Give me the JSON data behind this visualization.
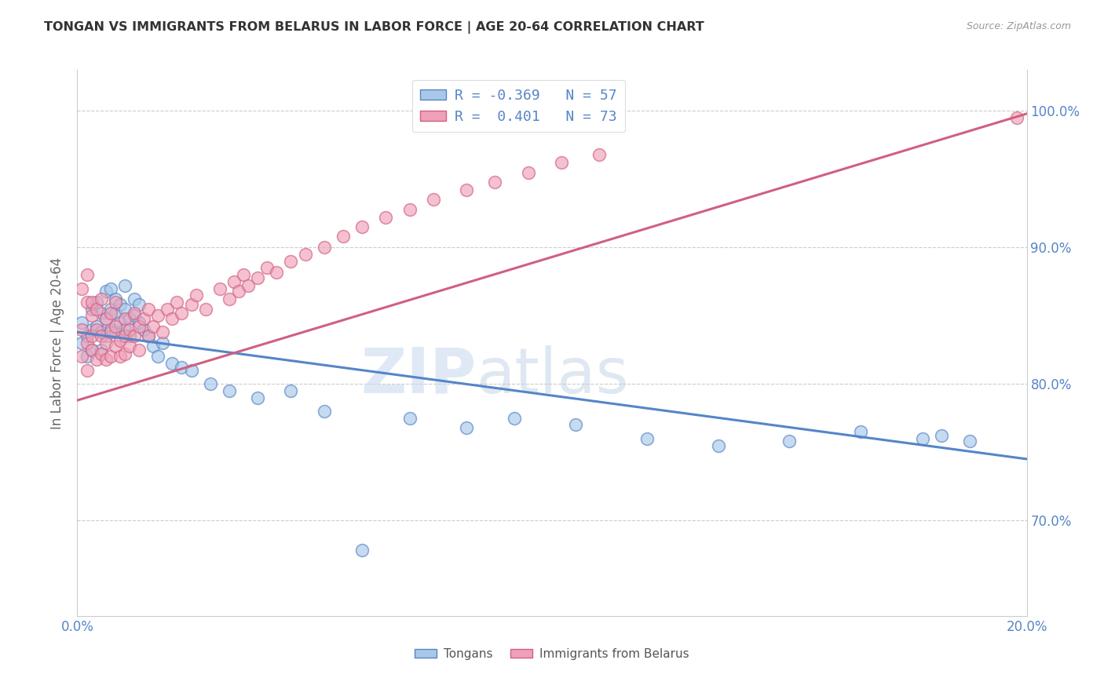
{
  "title": "TONGAN VS IMMIGRANTS FROM BELARUS IN LABOR FORCE | AGE 20-64 CORRELATION CHART",
  "source": "Source: ZipAtlas.com",
  "ylabel": "In Labor Force | Age 20-64",
  "xlim": [
    0.0,
    0.2
  ],
  "ylim": [
    0.63,
    1.03
  ],
  "xticks": [
    0.0,
    0.04,
    0.08,
    0.12,
    0.16,
    0.2
  ],
  "xticklabels": [
    "0.0%",
    "",
    "",
    "",
    "",
    "20.0%"
  ],
  "yticks": [
    0.7,
    0.8,
    0.9,
    1.0
  ],
  "yticklabels": [
    "70.0%",
    "80.0%",
    "90.0%",
    "100.0%"
  ],
  "legend_line1": "R = -0.369   N = 57",
  "legend_line2": "R =  0.401   N = 73",
  "blue_color": "#A8C8E8",
  "pink_color": "#F0A0B8",
  "trendline_blue": "#5585C8",
  "trendline_pink": "#D06080",
  "watermark_zip": "ZIP",
  "watermark_atlas": "atlas",
  "legend_label_blue": "Tongans",
  "legend_label_pink": "Immigrants from Belarus",
  "blue_x": [
    0.001,
    0.001,
    0.002,
    0.002,
    0.003,
    0.003,
    0.003,
    0.004,
    0.004,
    0.005,
    0.005,
    0.005,
    0.006,
    0.006,
    0.006,
    0.007,
    0.007,
    0.007,
    0.008,
    0.008,
    0.008,
    0.009,
    0.009,
    0.01,
    0.01,
    0.01,
    0.011,
    0.011,
    0.012,
    0.012,
    0.013,
    0.013,
    0.014,
    0.015,
    0.016,
    0.017,
    0.018,
    0.02,
    0.022,
    0.024,
    0.028,
    0.032,
    0.038,
    0.045,
    0.052,
    0.06,
    0.07,
    0.082,
    0.092,
    0.105,
    0.12,
    0.135,
    0.15,
    0.165,
    0.178,
    0.182,
    0.188
  ],
  "blue_y": [
    0.83,
    0.845,
    0.835,
    0.82,
    0.84,
    0.825,
    0.855,
    0.842,
    0.86,
    0.838,
    0.852,
    0.825,
    0.848,
    0.835,
    0.868,
    0.855,
    0.84,
    0.87,
    0.852,
    0.838,
    0.862,
    0.845,
    0.858,
    0.84,
    0.855,
    0.872,
    0.848,
    0.835,
    0.85,
    0.862,
    0.845,
    0.858,
    0.84,
    0.835,
    0.828,
    0.82,
    0.83,
    0.815,
    0.812,
    0.81,
    0.8,
    0.795,
    0.79,
    0.795,
    0.78,
    0.678,
    0.775,
    0.768,
    0.775,
    0.77,
    0.76,
    0.755,
    0.758,
    0.765,
    0.76,
    0.762,
    0.758
  ],
  "pink_x": [
    0.001,
    0.001,
    0.001,
    0.002,
    0.002,
    0.002,
    0.002,
    0.003,
    0.003,
    0.003,
    0.003,
    0.004,
    0.004,
    0.004,
    0.005,
    0.005,
    0.005,
    0.006,
    0.006,
    0.006,
    0.007,
    0.007,
    0.007,
    0.008,
    0.008,
    0.008,
    0.009,
    0.009,
    0.01,
    0.01,
    0.01,
    0.011,
    0.011,
    0.012,
    0.012,
    0.013,
    0.013,
    0.014,
    0.015,
    0.015,
    0.016,
    0.017,
    0.018,
    0.019,
    0.02,
    0.021,
    0.022,
    0.024,
    0.025,
    0.027,
    0.03,
    0.032,
    0.033,
    0.034,
    0.035,
    0.036,
    0.038,
    0.04,
    0.042,
    0.045,
    0.048,
    0.052,
    0.056,
    0.06,
    0.065,
    0.07,
    0.075,
    0.082,
    0.088,
    0.095,
    0.102,
    0.11,
    0.198
  ],
  "pink_y": [
    0.82,
    0.87,
    0.84,
    0.86,
    0.83,
    0.88,
    0.81,
    0.85,
    0.835,
    0.86,
    0.825,
    0.84,
    0.818,
    0.855,
    0.835,
    0.862,
    0.822,
    0.848,
    0.83,
    0.818,
    0.838,
    0.852,
    0.82,
    0.842,
    0.828,
    0.86,
    0.832,
    0.82,
    0.835,
    0.848,
    0.822,
    0.84,
    0.828,
    0.852,
    0.835,
    0.842,
    0.825,
    0.848,
    0.835,
    0.855,
    0.842,
    0.85,
    0.838,
    0.855,
    0.848,
    0.86,
    0.852,
    0.858,
    0.865,
    0.855,
    0.87,
    0.862,
    0.875,
    0.868,
    0.88,
    0.872,
    0.878,
    0.885,
    0.882,
    0.89,
    0.895,
    0.9,
    0.908,
    0.915,
    0.922,
    0.928,
    0.935,
    0.942,
    0.948,
    0.955,
    0.962,
    0.968,
    0.995
  ],
  "blue_trendline_x": [
    0.0,
    0.2
  ],
  "blue_trendline_y": [
    0.838,
    0.745
  ],
  "pink_trendline_x": [
    0.0,
    0.2
  ],
  "pink_trendline_y": [
    0.788,
    0.998
  ]
}
